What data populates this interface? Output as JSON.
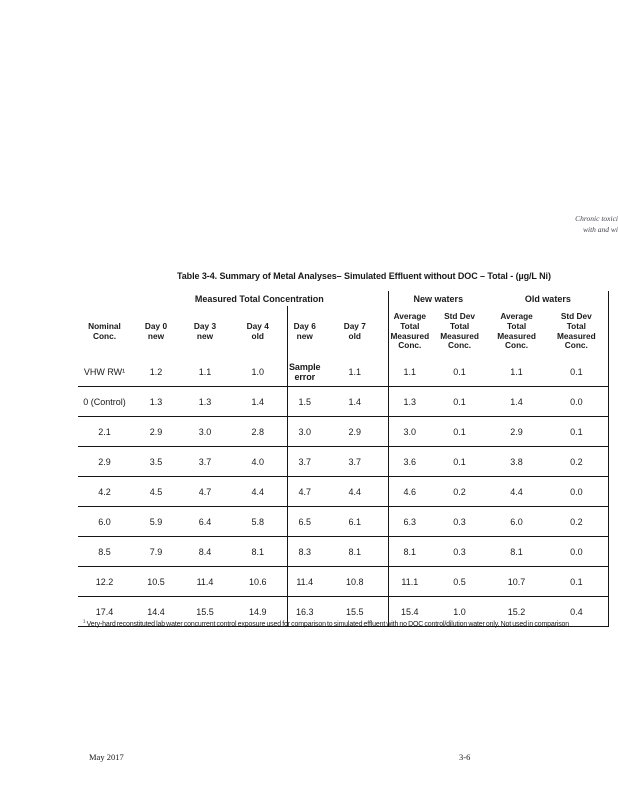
{
  "doc_header": {
    "line1": "Chronic toxici",
    "line2": "with and wi"
  },
  "table": {
    "title": "Table 3-4. Summary of Metal Analyses– Simulated Effluent without DOC – Total - (µg/L Ni)",
    "groups": {
      "measured": "Measured Total Concentration",
      "new_waters": "New waters",
      "old_waters": "Old waters"
    },
    "columns": [
      "Nominal\nConc.",
      "Day 0\nnew",
      "Day 3\nnew",
      "Day 4\nold",
      "Day 6\nnew",
      "Day 7\nold",
      "Average\nTotal\nMeasured\nConc.",
      "Std Dev\nTotal\nMeasured\nConc.",
      "Average\nTotal\nMeasured\nConc.",
      "Std Dev\nTotal\nMeasured\nConc."
    ],
    "sample_error_label": "Sample error",
    "rows": [
      [
        "VHW RW¹",
        "1.2",
        "1.1",
        "1.0",
        "Sample error",
        "1.1",
        "1.1",
        "0.1",
        "1.1",
        "0.1"
      ],
      [
        "0 (Control)",
        "1.3",
        "1.3",
        "1.4",
        "1.5",
        "1.4",
        "1.3",
        "0.1",
        "1.4",
        "0.0"
      ],
      [
        "2.1",
        "2.9",
        "3.0",
        "2.8",
        "3.0",
        "2.9",
        "3.0",
        "0.1",
        "2.9",
        "0.1"
      ],
      [
        "2.9",
        "3.5",
        "3.7",
        "4.0",
        "3.7",
        "3.7",
        "3.6",
        "0.1",
        "3.8",
        "0.2"
      ],
      [
        "4.2",
        "4.5",
        "4.7",
        "4.4",
        "4.7",
        "4.4",
        "4.6",
        "0.2",
        "4.4",
        "0.0"
      ],
      [
        "6.0",
        "5.9",
        "6.4",
        "5.8",
        "6.5",
        "6.1",
        "6.3",
        "0.3",
        "6.0",
        "0.2"
      ],
      [
        "8.5",
        "7.9",
        "8.4",
        "8.1",
        "8.3",
        "8.1",
        "8.1",
        "0.3",
        "8.1",
        "0.0"
      ],
      [
        "12.2",
        "10.5",
        "11.4",
        "10.6",
        "11.4",
        "10.8",
        "11.1",
        "0.5",
        "10.7",
        "0.1"
      ],
      [
        "17.4",
        "14.4",
        "15.5",
        "14.9",
        "16.3",
        "15.5",
        "15.4",
        "1.0",
        "15.2",
        "0.4"
      ]
    ],
    "footnote": {
      "marker": "1",
      "text": "Very-hard reconstituted lab water concurrent control exposure used for comparison to simulated effluent with no DOC control/dilution water only. Not used in comparison"
    }
  },
  "footer": {
    "date": "May 2017",
    "page_number": "3-6"
  }
}
